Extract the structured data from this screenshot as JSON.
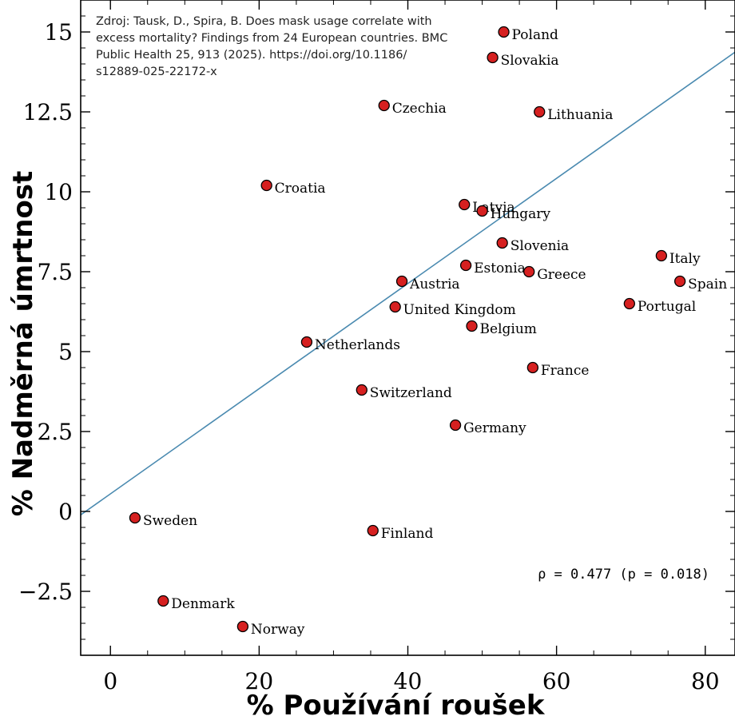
{
  "chart_data": {
    "type": "scatter",
    "xlabel": "% Používání roušek",
    "ylabel": "% Nadměrná úmrtnost",
    "xlim": [
      -4,
      84
    ],
    "ylim": [
      -4.5,
      16
    ],
    "xticks": [
      0,
      20,
      40,
      60,
      80
    ],
    "yticks": [
      -2.5,
      0,
      2.5,
      5,
      7.5,
      10,
      12.5,
      15
    ],
    "ytick_labels": [
      "−2.5",
      "0",
      "2.5",
      "5",
      "7.5",
      "10",
      "12.5",
      "15"
    ],
    "source_lines": [
      "Zdroj: Tausk, D., Spira, B. Does mask usage correlate with",
      "excess mortality? Findings from 24 European countries. BMC",
      "Public Health 25, 913 (2025). https://doi.org/10.1186/",
      "s12889-025-22172-x"
    ],
    "annotation": "ρ = 0.477 (p = 0.018)",
    "trendline": {
      "slope": 0.1645,
      "intercept": 0.55
    },
    "colors": {
      "point": "#d62020",
      "trendline": "#4a8ab0"
    },
    "points": [
      {
        "label": "Poland",
        "x": 52.9,
        "y": 15.0
      },
      {
        "label": "Slovakia",
        "x": 51.4,
        "y": 14.2
      },
      {
        "label": "Czechia",
        "x": 36.8,
        "y": 12.7
      },
      {
        "label": "Lithuania",
        "x": 57.7,
        "y": 12.5
      },
      {
        "label": "Croatia",
        "x": 21.0,
        "y": 10.2
      },
      {
        "label": "Latvia",
        "x": 47.6,
        "y": 9.6
      },
      {
        "label": "Hungary",
        "x": 50.0,
        "y": 9.4
      },
      {
        "label": "Slovenia",
        "x": 52.7,
        "y": 8.4
      },
      {
        "label": "Italy",
        "x": 74.1,
        "y": 8.0
      },
      {
        "label": "Estonia",
        "x": 47.8,
        "y": 7.7
      },
      {
        "label": "Greece",
        "x": 56.3,
        "y": 7.5
      },
      {
        "label": "Austria",
        "x": 39.2,
        "y": 7.2
      },
      {
        "label": "Spain",
        "x": 76.6,
        "y": 7.2
      },
      {
        "label": "Portugal",
        "x": 69.8,
        "y": 6.5
      },
      {
        "label": "United Kingdom",
        "x": 38.3,
        "y": 6.4
      },
      {
        "label": "Belgium",
        "x": 48.6,
        "y": 5.8
      },
      {
        "label": "Netherlands",
        "x": 26.4,
        "y": 5.3
      },
      {
        "label": "France",
        "x": 56.8,
        "y": 4.5
      },
      {
        "label": "Switzerland",
        "x": 33.8,
        "y": 3.8
      },
      {
        "label": "Germany",
        "x": 46.4,
        "y": 2.7
      },
      {
        "label": "Sweden",
        "x": 3.3,
        "y": -0.2
      },
      {
        "label": "Finland",
        "x": 35.3,
        "y": -0.6
      },
      {
        "label": "Denmark",
        "x": 7.1,
        "y": -2.8
      },
      {
        "label": "Norway",
        "x": 17.8,
        "y": -3.6
      }
    ]
  }
}
